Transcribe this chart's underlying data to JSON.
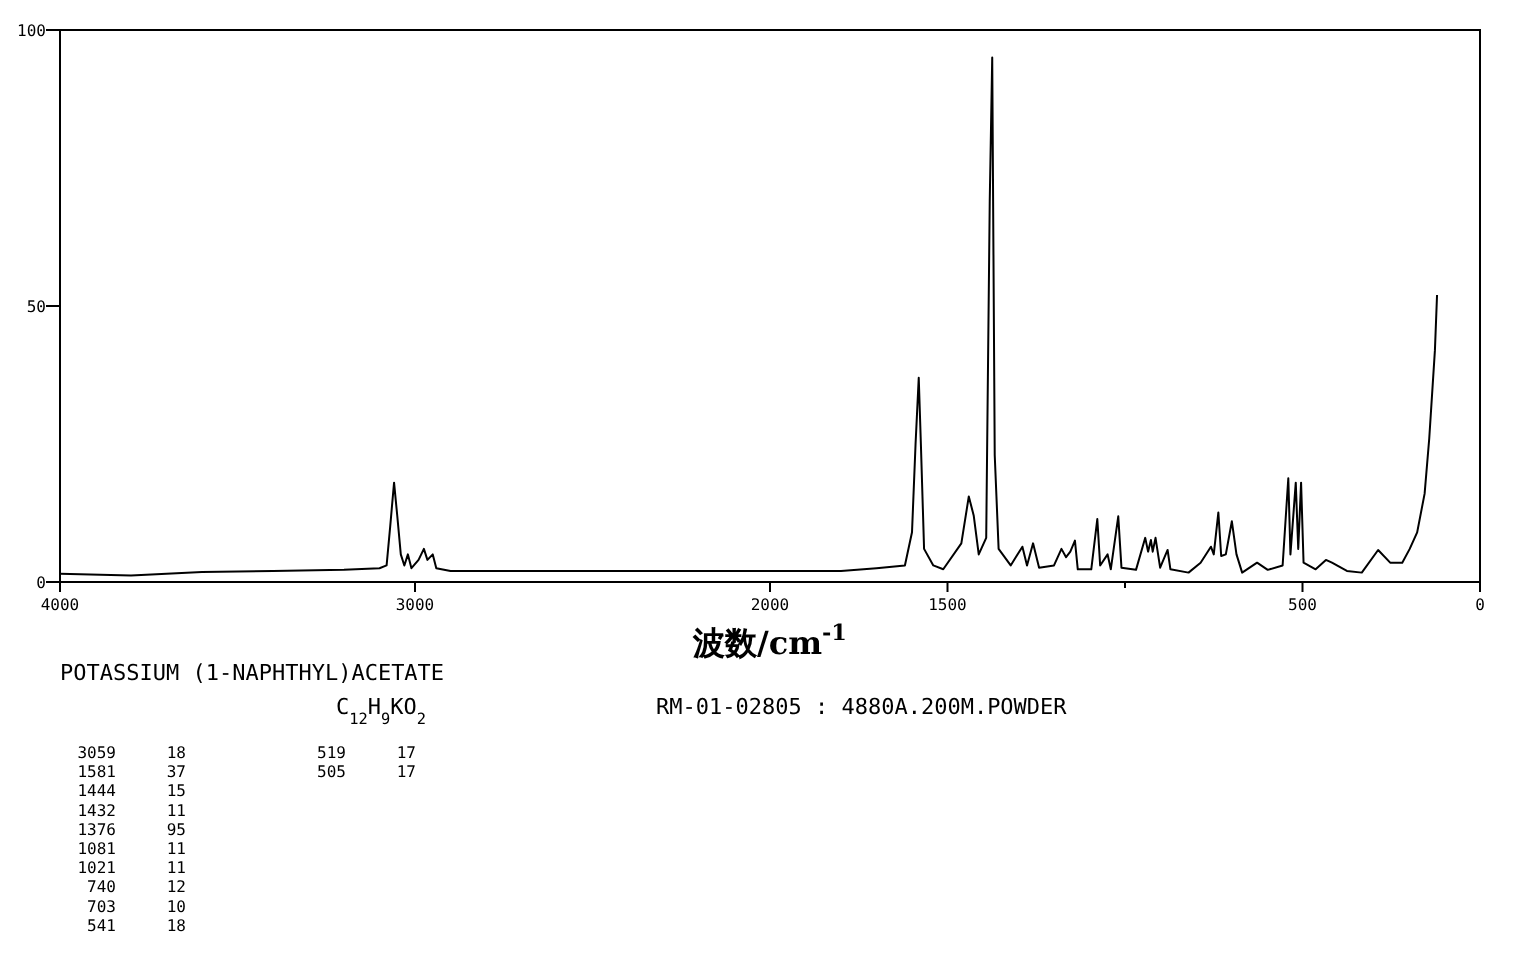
{
  "chart_data": {
    "type": "line",
    "xlabel": "波数/cm$^{-1}$",
    "color": "#000000",
    "xlim": [
      4000,
      0
    ],
    "ylim": [
      0,
      100
    ],
    "xticks": [
      4000,
      3000,
      2000,
      1500,
      {
        "value": 1000,
        "label": null
      },
      500,
      0
    ],
    "yticks": [
      0,
      50,
      100
    ],
    "marker": "none",
    "line_style": "solid",
    "x": [
      4000,
      3800,
      3600,
      3400,
      3200,
      3100,
      3080,
      3070,
      3059,
      3050,
      3040,
      3030,
      3020,
      3010,
      2990,
      2975,
      2965,
      2950,
      2940,
      2900,
      2600,
      2300,
      2000,
      1800,
      1700,
      1620,
      1600,
      1590,
      1581,
      1575,
      1566,
      1540,
      1512,
      1461,
      1440,
      1426,
      1412,
      1391,
      1381,
      1374,
      1367,
      1356,
      1322,
      1289,
      1276,
      1259,
      1242,
      1200,
      1179,
      1166,
      1154,
      1141,
      1133,
      1095,
      1078,
      1070,
      1049,
      1040,
      1019,
      1010,
      969,
      943,
      935,
      927,
      922,
      914,
      901,
      880,
      872,
      821,
      787,
      758,
      750,
      737,
      729,
      716,
      699,
      686,
      670,
      628,
      598,
      556,
      540,
      534,
      519,
      512,
      504,
      497,
      463,
      434,
      417,
      375,
      333,
      287,
      253,
      219,
      198,
      177,
      156,
      143,
      127,
      121
    ],
    "values": [
      1.5,
      1.2,
      1.8,
      2,
      2.2,
      2.5,
      3,
      10,
      18,
      12,
      5,
      3,
      5,
      2.5,
      4,
      6,
      4,
      5,
      2.5,
      2,
      2,
      2,
      2,
      2,
      2.5,
      3,
      9,
      25,
      37,
      25,
      6,
      3,
      2.3,
      7,
      15.5,
      12,
      5,
      8,
      69,
      95,
      23,
      6,
      3,
      6.4,
      3,
      7,
      2.6,
      3,
      6,
      4.5,
      5.5,
      7.5,
      2.3,
      2.3,
      11.4,
      3,
      5,
      2.3,
      11.9,
      2.6,
      2.2,
      8,
      5.5,
      7.6,
      5.5,
      8,
      2.6,
      5.8,
      2.3,
      1.7,
      3.5,
      6.4,
      5,
      12.6,
      4.7,
      5,
      11,
      5,
      1.7,
      3.5,
      2.2,
      3,
      18.8,
      5,
      18,
      6,
      18,
      3.5,
      2.3,
      4,
      3.5,
      2,
      1.7,
      5.8,
      3.5,
      3.5,
      6,
      9,
      16,
      26,
      42,
      52
    ],
    "annotations": [
      "POTASSIUM (1-NAPHTHYL)ACETATE",
      "C$_{12}$H$_{9}$KO$_{2}$",
      "RM-01-02805 : 4880A.200M.POWDER",
      "3059",
      "18",
      "1581",
      "37",
      "1444",
      "15",
      "1432",
      "11",
      "1376",
      "95",
      "1081",
      "11",
      "1021",
      "11",
      "740",
      "12",
      "703",
      "10",
      "541",
      "18",
      "519",
      "17",
      "505",
      "17"
    ]
  }
}
